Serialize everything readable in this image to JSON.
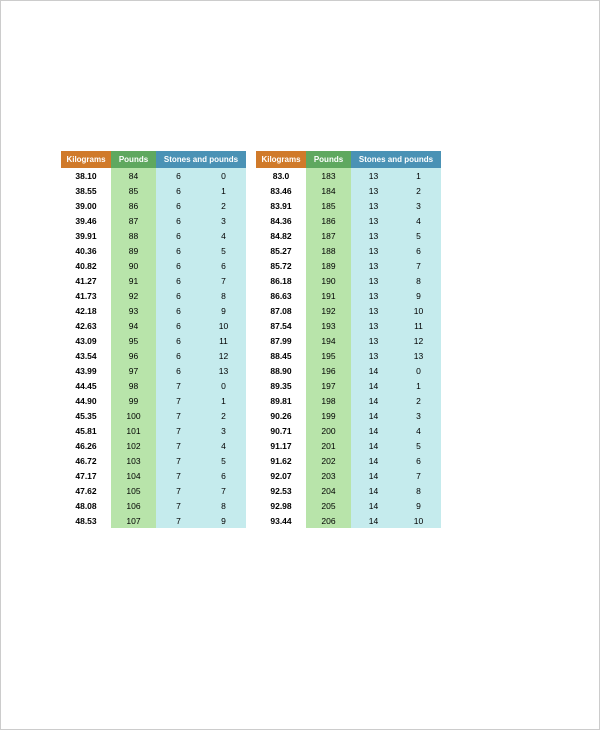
{
  "headers": {
    "kg": "Kilograms",
    "lb": "Pounds",
    "sp": "Stones and pounds"
  },
  "colors": {
    "kg_header_bg": "#d07a2a",
    "lb_header_bg": "#5fa85f",
    "sp_header_bg": "#4a92b5",
    "kg_cell_bg": "#ffffff",
    "lb_cell_bg": "#b8e4aa",
    "sp_cell_bg": "#c5ebed",
    "header_text": "#ffffff",
    "cell_text": "#000000"
  },
  "left": {
    "rows": [
      {
        "kg": "38.10",
        "lb": "84",
        "s": "6",
        "p": "0"
      },
      {
        "kg": "38.55",
        "lb": "85",
        "s": "6",
        "p": "1"
      },
      {
        "kg": "39.00",
        "lb": "86",
        "s": "6",
        "p": "2"
      },
      {
        "kg": "39.46",
        "lb": "87",
        "s": "6",
        "p": "3"
      },
      {
        "kg": "39.91",
        "lb": "88",
        "s": "6",
        "p": "4"
      },
      {
        "kg": "40.36",
        "lb": "89",
        "s": "6",
        "p": "5"
      },
      {
        "kg": "40.82",
        "lb": "90",
        "s": "6",
        "p": "6"
      },
      {
        "kg": "41.27",
        "lb": "91",
        "s": "6",
        "p": "7"
      },
      {
        "kg": "41.73",
        "lb": "92",
        "s": "6",
        "p": "8"
      },
      {
        "kg": "42.18",
        "lb": "93",
        "s": "6",
        "p": "9"
      },
      {
        "kg": "42.63",
        "lb": "94",
        "s": "6",
        "p": "10"
      },
      {
        "kg": "43.09",
        "lb": "95",
        "s": "6",
        "p": "11"
      },
      {
        "kg": "43.54",
        "lb": "96",
        "s": "6",
        "p": "12"
      },
      {
        "kg": "43.99",
        "lb": "97",
        "s": "6",
        "p": "13"
      },
      {
        "kg": "44.45",
        "lb": "98",
        "s": "7",
        "p": "0"
      },
      {
        "kg": "44.90",
        "lb": "99",
        "s": "7",
        "p": "1"
      },
      {
        "kg": "45.35",
        "lb": "100",
        "s": "7",
        "p": "2"
      },
      {
        "kg": "45.81",
        "lb": "101",
        "s": "7",
        "p": "3"
      },
      {
        "kg": "46.26",
        "lb": "102",
        "s": "7",
        "p": "4"
      },
      {
        "kg": "46.72",
        "lb": "103",
        "s": "7",
        "p": "5"
      },
      {
        "kg": "47.17",
        "lb": "104",
        "s": "7",
        "p": "6"
      },
      {
        "kg": "47.62",
        "lb": "105",
        "s": "7",
        "p": "7"
      },
      {
        "kg": "48.08",
        "lb": "106",
        "s": "7",
        "p": "8"
      },
      {
        "kg": "48.53",
        "lb": "107",
        "s": "7",
        "p": "9"
      }
    ]
  },
  "right": {
    "rows": [
      {
        "kg": "83.0",
        "lb": "183",
        "s": "13",
        "p": "1"
      },
      {
        "kg": "83.46",
        "lb": "184",
        "s": "13",
        "p": "2"
      },
      {
        "kg": "83.91",
        "lb": "185",
        "s": "13",
        "p": "3"
      },
      {
        "kg": "84.36",
        "lb": "186",
        "s": "13",
        "p": "4"
      },
      {
        "kg": "84.82",
        "lb": "187",
        "s": "13",
        "p": "5"
      },
      {
        "kg": "85.27",
        "lb": "188",
        "s": "13",
        "p": "6"
      },
      {
        "kg": "85.72",
        "lb": "189",
        "s": "13",
        "p": "7"
      },
      {
        "kg": "86.18",
        "lb": "190",
        "s": "13",
        "p": "8"
      },
      {
        "kg": "86.63",
        "lb": "191",
        "s": "13",
        "p": "9"
      },
      {
        "kg": "87.08",
        "lb": "192",
        "s": "13",
        "p": "10"
      },
      {
        "kg": "87.54",
        "lb": "193",
        "s": "13",
        "p": "11"
      },
      {
        "kg": "87.99",
        "lb": "194",
        "s": "13",
        "p": "12"
      },
      {
        "kg": "88.45",
        "lb": "195",
        "s": "13",
        "p": "13"
      },
      {
        "kg": "88.90",
        "lb": "196",
        "s": "14",
        "p": "0"
      },
      {
        "kg": "89.35",
        "lb": "197",
        "s": "14",
        "p": "1"
      },
      {
        "kg": "89.81",
        "lb": "198",
        "s": "14",
        "p": "2"
      },
      {
        "kg": "90.26",
        "lb": "199",
        "s": "14",
        "p": "3"
      },
      {
        "kg": "90.71",
        "lb": "200",
        "s": "14",
        "p": "4"
      },
      {
        "kg": "91.17",
        "lb": "201",
        "s": "14",
        "p": "5"
      },
      {
        "kg": "91.62",
        "lb": "202",
        "s": "14",
        "p": "6"
      },
      {
        "kg": "92.07",
        "lb": "203",
        "s": "14",
        "p": "7"
      },
      {
        "kg": "92.53",
        "lb": "204",
        "s": "14",
        "p": "8"
      },
      {
        "kg": "92.98",
        "lb": "205",
        "s": "14",
        "p": "9"
      },
      {
        "kg": "93.44",
        "lb": "206",
        "s": "14",
        "p": "10"
      }
    ]
  }
}
